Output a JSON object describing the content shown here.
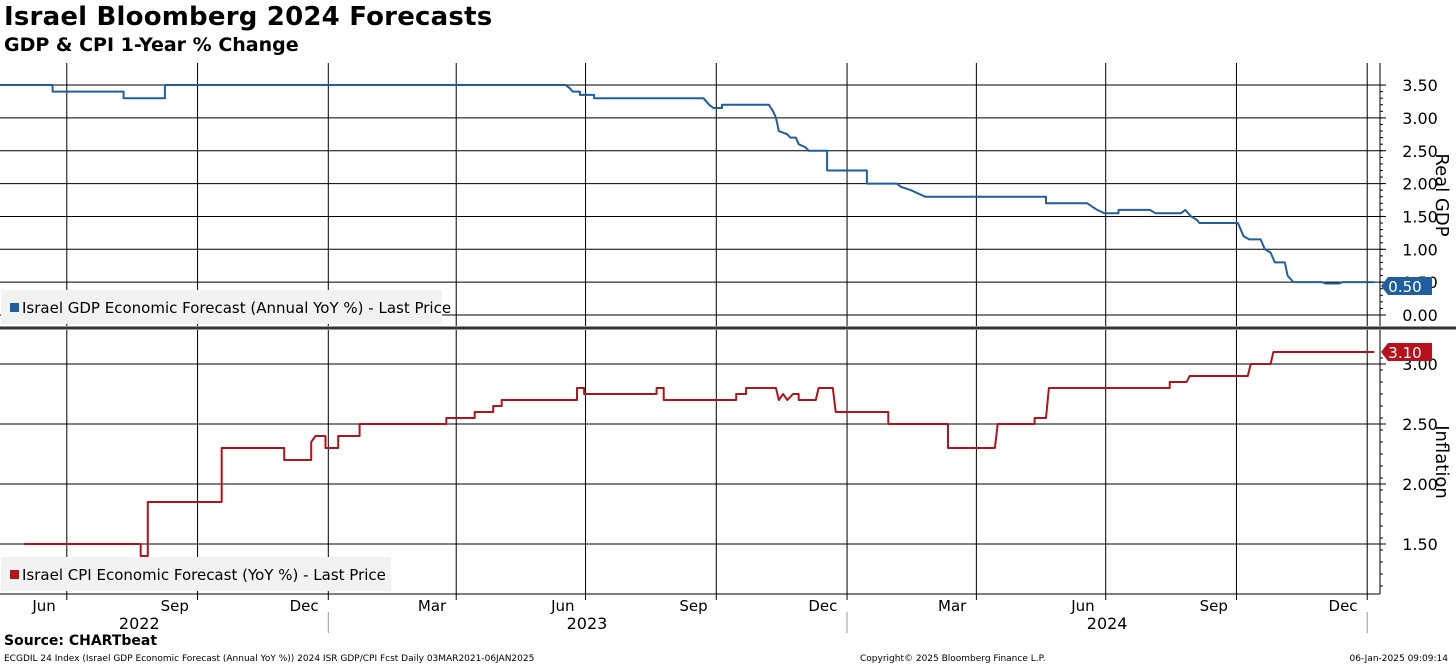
{
  "title": "Israel Bloomberg 2024 Forecasts",
  "subtitle": "GDP & CPI 1-Year % Change",
  "source": "Source: CHARTbeat",
  "footer": {
    "left": "ECGDIL 24 Index (Israel GDP Economic Forecast (Annual YoY %)) 2024 ISR GDP/CPI Fcst  Daily 03MAR2021-06JAN2025",
    "middle": "Copyright© 2025 Bloomberg Finance L.P.",
    "right": "06-Jan-2025 09:09:14"
  },
  "colors": {
    "gdp": "#1f5fa0",
    "cpi": "#b5121b",
    "grid": "#000000"
  },
  "chart_data": [
    {
      "type": "line",
      "panel": "top",
      "ylabel": "Real GDP",
      "ylim": [
        0.0,
        3.6
      ],
      "yticks": [
        "0.00",
        "0.50",
        "1.00",
        "1.50",
        "2.00",
        "2.50",
        "3.00",
        "3.50"
      ],
      "legend": "Israel GDP Economic Forecast (Annual YoY %) - Last Price",
      "legend_position": "bottom-left",
      "last_value_label": "0.50",
      "series": [
        {
          "points": [
            [
              "2022-05-15",
              3.5
            ],
            [
              "2022-06-21",
              3.5
            ],
            [
              "2022-06-21",
              3.4
            ],
            [
              "2022-08-10",
              3.4
            ],
            [
              "2022-08-10",
              3.3
            ],
            [
              "2022-09-08",
              3.3
            ],
            [
              "2022-09-08",
              3.5
            ],
            [
              "2023-06-17",
              3.5
            ],
            [
              "2023-06-20",
              3.45
            ],
            [
              "2023-06-22",
              3.4
            ],
            [
              "2023-06-27",
              3.4
            ],
            [
              "2023-06-27",
              3.35
            ],
            [
              "2023-07-07",
              3.35
            ],
            [
              "2023-07-07",
              3.3
            ],
            [
              "2023-09-22",
              3.3
            ],
            [
              "2023-09-26",
              3.2
            ],
            [
              "2023-09-29",
              3.15
            ],
            [
              "2023-10-05",
              3.15
            ],
            [
              "2023-10-05",
              3.2
            ],
            [
              "2023-11-07",
              3.2
            ],
            [
              "2023-11-10",
              3.1
            ],
            [
              "2023-11-12",
              3.0
            ],
            [
              "2023-11-14",
              2.8
            ],
            [
              "2023-11-20",
              2.75
            ],
            [
              "2023-11-22",
              2.7
            ],
            [
              "2023-11-26",
              2.7
            ],
            [
              "2023-11-28",
              2.6
            ],
            [
              "2023-12-03",
              2.55
            ],
            [
              "2023-12-05",
              2.5
            ],
            [
              "2023-12-18",
              2.5
            ],
            [
              "2023-12-18",
              2.2
            ],
            [
              "2024-01-15",
              2.2
            ],
            [
              "2024-01-15",
              2.0
            ],
            [
              "2024-02-05",
              2.0
            ],
            [
              "2024-02-08",
              1.95
            ],
            [
              "2024-02-15",
              1.9
            ],
            [
              "2024-02-20",
              1.85
            ],
            [
              "2024-02-25",
              1.8
            ],
            [
              "2024-05-20",
              1.8
            ],
            [
              "2024-05-20",
              1.7
            ],
            [
              "2024-06-18",
              1.7
            ],
            [
              "2024-06-25",
              1.6
            ],
            [
              "2024-06-30",
              1.55
            ],
            [
              "2024-07-10",
              1.55
            ],
            [
              "2024-07-10",
              1.6
            ],
            [
              "2024-08-01",
              1.6
            ],
            [
              "2024-08-05",
              1.55
            ],
            [
              "2024-08-23",
              1.55
            ],
            [
              "2024-08-26",
              1.6
            ],
            [
              "2024-08-30",
              1.5
            ],
            [
              "2024-09-03",
              1.45
            ],
            [
              "2024-09-05",
              1.4
            ],
            [
              "2024-10-02",
              1.4
            ],
            [
              "2024-10-06",
              1.2
            ],
            [
              "2024-10-10",
              1.15
            ],
            [
              "2024-10-18",
              1.15
            ],
            [
              "2024-10-21",
              1.0
            ],
            [
              "2024-10-25",
              0.95
            ],
            [
              "2024-10-28",
              0.8
            ],
            [
              "2024-11-04",
              0.8
            ],
            [
              "2024-11-06",
              0.6
            ],
            [
              "2024-11-10",
              0.5
            ],
            [
              "2024-11-30",
              0.5
            ],
            [
              "2024-12-03",
              0.48
            ],
            [
              "2024-12-12",
              0.48
            ],
            [
              "2024-12-15",
              0.5
            ],
            [
              "2025-01-06",
              0.5
            ]
          ]
        }
      ]
    },
    {
      "type": "line",
      "panel": "bottom",
      "ylabel": "Inflation",
      "ylim": [
        1.15,
        3.15
      ],
      "yticks": [
        "1.50",
        "2.00",
        "2.50",
        "3.00"
      ],
      "legend": "Israel CPI Economic Forecast (YoY %) - Last Price",
      "legend_position": "bottom-left",
      "last_value_label": "3.10",
      "series": [
        {
          "points": [
            [
              "2022-06-01",
              1.5
            ],
            [
              "2022-08-22",
              1.5
            ],
            [
              "2022-08-22",
              1.4
            ],
            [
              "2022-08-27",
              1.4
            ],
            [
              "2022-08-27",
              1.85
            ],
            [
              "2022-10-18",
              1.85
            ],
            [
              "2022-10-18",
              2.3
            ],
            [
              "2022-12-01",
              2.3
            ],
            [
              "2022-12-01",
              2.2
            ],
            [
              "2022-12-20",
              2.2
            ],
            [
              "2022-12-20",
              2.35
            ],
            [
              "2022-12-23",
              2.4
            ],
            [
              "2022-12-30",
              2.4
            ],
            [
              "2022-12-30",
              2.3
            ],
            [
              "2023-01-08",
              2.3
            ],
            [
              "2023-01-08",
              2.4
            ],
            [
              "2023-01-23",
              2.4
            ],
            [
              "2023-01-23",
              2.5
            ],
            [
              "2023-03-25",
              2.5
            ],
            [
              "2023-03-25",
              2.55
            ],
            [
              "2023-04-14",
              2.55
            ],
            [
              "2023-04-14",
              2.6
            ],
            [
              "2023-04-27",
              2.6
            ],
            [
              "2023-04-27",
              2.65
            ],
            [
              "2023-05-03",
              2.65
            ],
            [
              "2023-05-03",
              2.7
            ],
            [
              "2023-06-10",
              2.7
            ],
            [
              "2023-06-25",
              2.7
            ],
            [
              "2023-06-25",
              2.8
            ],
            [
              "2023-06-30",
              2.8
            ],
            [
              "2023-06-30",
              2.75
            ],
            [
              "2023-08-20",
              2.75
            ],
            [
              "2023-08-20",
              2.8
            ],
            [
              "2023-08-25",
              2.8
            ],
            [
              "2023-08-25",
              2.7
            ],
            [
              "2023-10-15",
              2.7
            ],
            [
              "2023-10-15",
              2.75
            ],
            [
              "2023-10-22",
              2.75
            ],
            [
              "2023-10-22",
              2.8
            ],
            [
              "2023-11-12",
              2.8
            ],
            [
              "2023-11-14",
              2.7
            ],
            [
              "2023-11-17",
              2.75
            ],
            [
              "2023-11-20",
              2.7
            ],
            [
              "2023-11-24",
              2.75
            ],
            [
              "2023-11-28",
              2.75
            ],
            [
              "2023-11-28",
              2.7
            ],
            [
              "2023-12-10",
              2.7
            ],
            [
              "2023-12-12",
              2.8
            ],
            [
              "2023-12-22",
              2.8
            ],
            [
              "2023-12-24",
              2.6
            ],
            [
              "2024-01-30",
              2.6
            ],
            [
              "2024-01-30",
              2.5
            ],
            [
              "2024-03-12",
              2.5
            ],
            [
              "2024-03-12",
              2.3
            ],
            [
              "2024-04-14",
              2.3
            ],
            [
              "2024-04-16",
              2.5
            ],
            [
              "2024-05-12",
              2.5
            ],
            [
              "2024-05-12",
              2.55
            ],
            [
              "2024-05-20",
              2.55
            ],
            [
              "2024-05-22",
              2.8
            ],
            [
              "2024-08-15",
              2.8
            ],
            [
              "2024-08-15",
              2.85
            ],
            [
              "2024-08-27",
              2.85
            ],
            [
              "2024-08-29",
              2.9
            ],
            [
              "2024-10-09",
              2.9
            ],
            [
              "2024-10-11",
              3.0
            ],
            [
              "2024-10-25",
              3.0
            ],
            [
              "2024-10-27",
              3.1
            ],
            [
              "2025-01-06",
              3.1
            ]
          ]
        }
      ]
    }
  ],
  "x_axis": {
    "months": [
      [
        "2022-06-15",
        "Jun"
      ],
      [
        "2022-09-15",
        "Sep"
      ],
      [
        "2022-12-15",
        "Dec"
      ],
      [
        "2023-03-15",
        "Mar"
      ],
      [
        "2023-06-15",
        "Jun"
      ],
      [
        "2023-09-15",
        "Sep"
      ],
      [
        "2023-12-15",
        "Dec"
      ],
      [
        "2024-03-15",
        "Mar"
      ],
      [
        "2024-06-15",
        "Jun"
      ],
      [
        "2024-09-15",
        "Sep"
      ],
      [
        "2024-12-15",
        "Dec"
      ]
    ],
    "years": [
      [
        "2022-08-21",
        "2022"
      ],
      [
        "2023-07-02",
        "2023"
      ],
      [
        "2024-07-02",
        "2024"
      ]
    ],
    "gridlines": [
      "2022-07-01",
      "2022-10-01",
      "2023-01-01",
      "2023-04-01",
      "2023-07-01",
      "2023-10-01",
      "2024-01-01",
      "2024-04-01",
      "2024-07-01",
      "2024-10-01",
      "2025-01-01"
    ],
    "year_boundaries": [
      "2023-01-01",
      "2024-01-01",
      "2025-01-01"
    ]
  }
}
